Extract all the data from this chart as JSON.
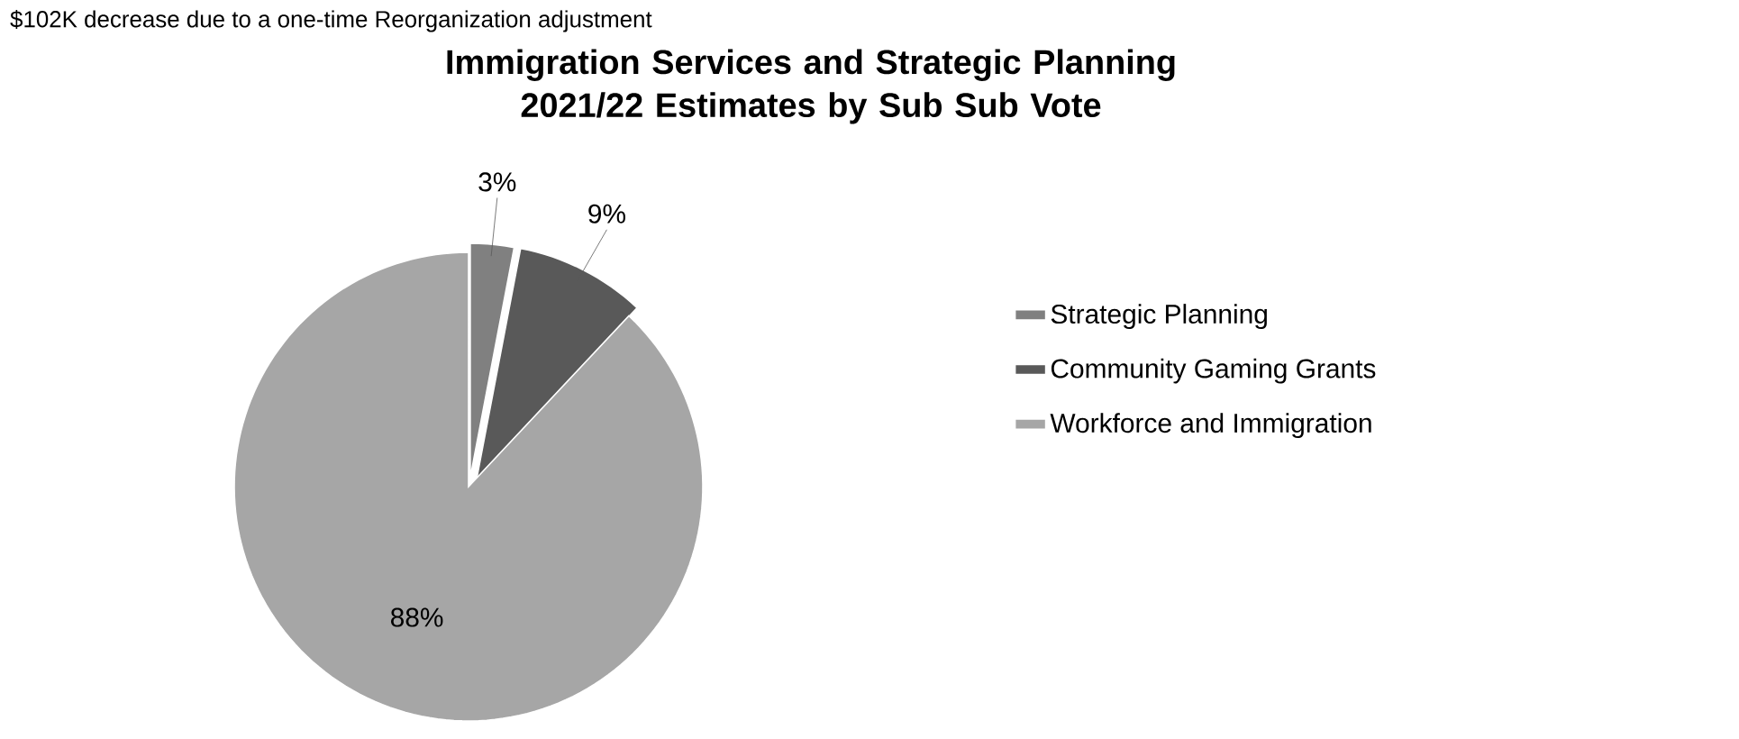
{
  "chart_data": {
    "type": "pie",
    "title": "Immigration Services and Strategic Planning 2021/22 Estimates by Sub Sub Vote",
    "categories": [
      "Strategic Planning",
      "Community Gaming Grants",
      "Workforce and Immigration"
    ],
    "values": [
      3,
      9,
      88
    ],
    "value_labels": [
      "3%",
      "9%",
      "88%"
    ],
    "colors": [
      "#808080",
      "#595959",
      "#a6a6a6"
    ],
    "legend": "right",
    "annotations": [
      "$102K decrease due to a one-time Reorganization adjustment"
    ]
  }
}
